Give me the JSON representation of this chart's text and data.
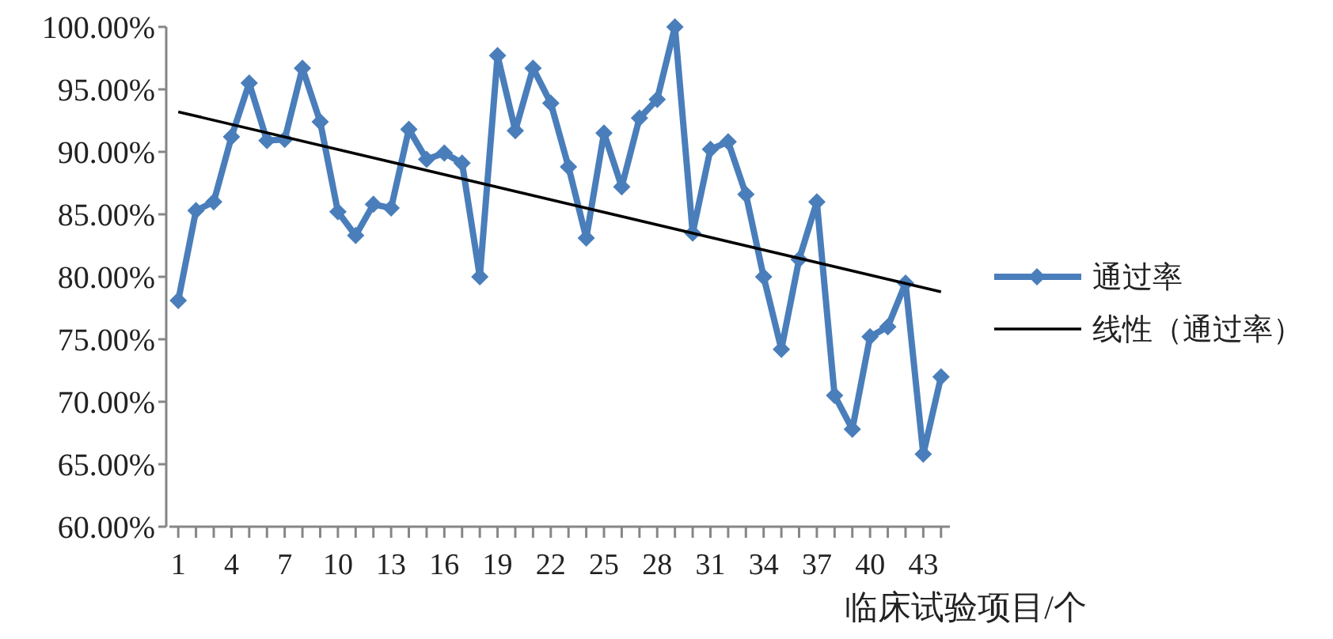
{
  "chart_data": {
    "type": "line",
    "xlabel": "临床试验项目/个",
    "x": [
      1,
      2,
      3,
      4,
      5,
      6,
      7,
      8,
      9,
      10,
      11,
      12,
      13,
      14,
      15,
      16,
      17,
      18,
      19,
      20,
      21,
      22,
      23,
      24,
      25,
      26,
      27,
      28,
      29,
      30,
      31,
      32,
      33,
      34,
      35,
      36,
      37,
      38,
      39,
      40,
      41,
      42,
      43,
      44
    ],
    "xlim": [
      0.5,
      44.5
    ],
    "xticks": [
      1,
      {
        "value": 2,
        "label": null
      },
      {
        "value": 3,
        "label": null
      },
      4,
      {
        "value": 5,
        "label": null
      },
      {
        "value": 6,
        "label": null
      },
      7,
      {
        "value": 8,
        "label": null
      },
      {
        "value": 9,
        "label": null
      },
      10,
      {
        "value": 11,
        "label": null
      },
      {
        "value": 12,
        "label": null
      },
      13,
      {
        "value": 14,
        "label": null
      },
      {
        "value": 15,
        "label": null
      },
      16,
      {
        "value": 17,
        "label": null
      },
      {
        "value": 18,
        "label": null
      },
      19,
      {
        "value": 20,
        "label": null
      },
      {
        "value": 21,
        "label": null
      },
      22,
      {
        "value": 23,
        "label": null
      },
      {
        "value": 24,
        "label": null
      },
      25,
      {
        "value": 26,
        "label": null
      },
      {
        "value": 27,
        "label": null
      },
      28,
      {
        "value": 29,
        "label": null
      },
      {
        "value": 30,
        "label": null
      },
      31,
      {
        "value": 32,
        "label": null
      },
      {
        "value": 33,
        "label": null
      },
      34,
      {
        "value": 35,
        "label": null
      },
      {
        "value": 36,
        "label": null
      },
      37,
      {
        "value": 38,
        "label": null
      },
      {
        "value": 39,
        "label": null
      },
      40,
      {
        "value": 41,
        "label": null
      },
      {
        "value": 42,
        "label": null
      },
      43,
      {
        "value": 44,
        "label": null
      }
    ],
    "ylim": [
      60,
      100
    ],
    "yticks": [
      {
        "value": 60,
        "label": "60.00%"
      },
      {
        "value": 65,
        "label": "65.00%"
      },
      {
        "value": 70,
        "label": "70.00%"
      },
      {
        "value": 75,
        "label": "75.00%"
      },
      {
        "value": 80,
        "label": "80.00%"
      },
      {
        "value": 85,
        "label": "85.00%"
      },
      {
        "value": 90,
        "label": "90.00%"
      },
      {
        "value": 95,
        "label": "95.00%"
      },
      {
        "value": 100,
        "label": "100.00%"
      }
    ],
    "series": [
      {
        "name": "通过率",
        "color": "#4a7ebb",
        "marker": "diamond",
        "values": [
          78.1,
          85.3,
          86.0,
          91.2,
          95.5,
          90.9,
          91.0,
          96.7,
          92.4,
          85.2,
          83.3,
          85.8,
          85.5,
          91.8,
          89.4,
          89.9,
          89.1,
          80.0,
          97.7,
          91.7,
          96.7,
          93.9,
          88.8,
          83.1,
          91.5,
          87.2,
          92.7,
          94.2,
          100.0,
          83.5,
          90.2,
          90.8,
          86.6,
          80.0,
          74.2,
          81.4,
          86.0,
          70.5,
          67.8,
          75.2,
          76.0,
          79.5,
          65.8,
          72.0
        ]
      },
      {
        "name": "线性（通过率）",
        "color": "#000000",
        "marker": "none",
        "x": [
          1,
          44
        ],
        "values": [
          93.2,
          78.8
        ]
      }
    ],
    "grid": false,
    "legend": "right"
  }
}
